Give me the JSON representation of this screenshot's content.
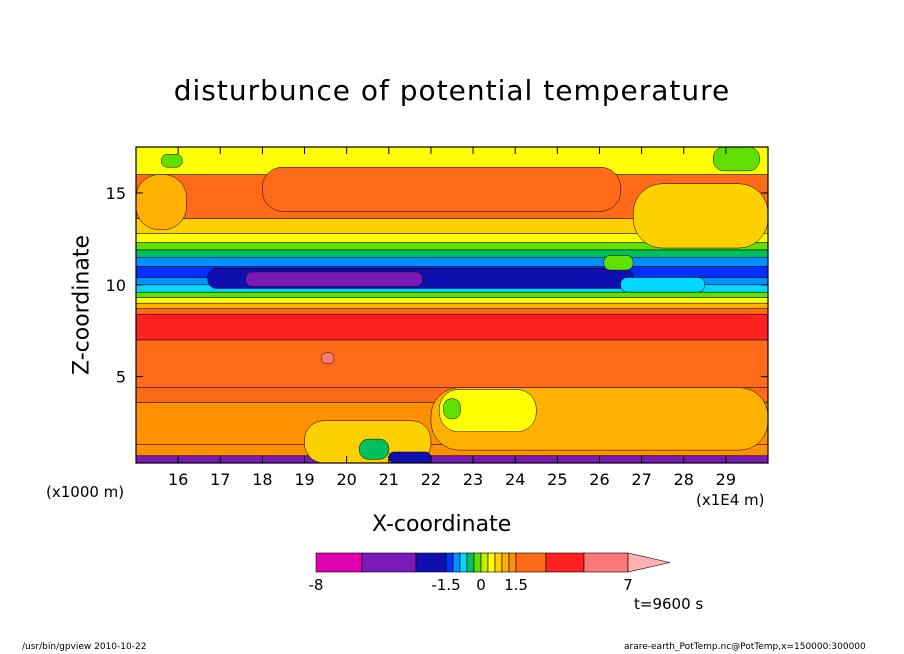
{
  "chart_data": {
    "type": "heatmap",
    "title": "disturbunce of potential temperature",
    "xlabel": "X-coordinate",
    "ylabel": "Z-coordinate",
    "x_unit_label": "(x1E4 m)",
    "y_unit_label": "(x1000 m)",
    "x_ticks": [
      "16",
      "17",
      "18",
      "19",
      "20",
      "21",
      "22",
      "23",
      "24",
      "25",
      "26",
      "27",
      "28",
      "29"
    ],
    "y_ticks": [
      "5",
      "10",
      "15"
    ],
    "xlim": [
      15.0,
      30.0
    ],
    "ylim": [
      0.3,
      17.5
    ],
    "colorbar": {
      "labels": [
        "-8",
        "-1.5",
        "0",
        "1.5",
        "7"
      ],
      "bins": [
        {
          "lo": -8,
          "hi": -6,
          "color": "#e000b0"
        },
        {
          "lo": -6,
          "hi": -4,
          "color": "#7a18b8"
        },
        {
          "lo": -4,
          "hi": -1.5,
          "color": "#1010b0"
        },
        {
          "lo": -1.5,
          "hi": -1.2,
          "color": "#0030ff"
        },
        {
          "lo": -1.2,
          "hi": -0.9,
          "color": "#0090ff"
        },
        {
          "lo": -0.9,
          "hi": -0.6,
          "color": "#00d8ff"
        },
        {
          "lo": -0.6,
          "hi": -0.3,
          "color": "#00c060"
        },
        {
          "lo": -0.3,
          "hi": 0,
          "color": "#60e000"
        },
        {
          "lo": 0,
          "hi": 0.3,
          "color": "#c0f000"
        },
        {
          "lo": 0.3,
          "hi": 0.6,
          "color": "#ffff00"
        },
        {
          "lo": 0.6,
          "hi": 0.9,
          "color": "#ffd000"
        },
        {
          "lo": 0.9,
          "hi": 1.2,
          "color": "#ffb000"
        },
        {
          "lo": 1.2,
          "hi": 1.5,
          "color": "#ff9000"
        },
        {
          "lo": 1.5,
          "hi": 3,
          "color": "#ff6a18"
        },
        {
          "lo": 3,
          "hi": 5,
          "color": "#ff2020"
        },
        {
          "lo": 5,
          "hi": 7,
          "color": "#ff7878"
        }
      ],
      "overflow_color": "#ffb0b0"
    },
    "bands": [
      {
        "z0": 0.3,
        "z1": 0.7,
        "color": "#7a18b8"
      },
      {
        "z0": 0.7,
        "z1": 1.3,
        "color": "#ff9000"
      },
      {
        "z0": 1.3,
        "z1": 3.6,
        "color": "#ff9000"
      },
      {
        "z0": 3.6,
        "z1": 4.4,
        "color": "#ff6a18"
      },
      {
        "z0": 4.4,
        "z1": 7.0,
        "color": "#ff6a18"
      },
      {
        "z0": 7.0,
        "z1": 8.4,
        "color": "#ff2020"
      },
      {
        "z0": 8.4,
        "z1": 8.7,
        "color": "#ff6a18"
      },
      {
        "z0": 8.7,
        "z1": 9.0,
        "color": "#ffb000"
      },
      {
        "z0": 9.0,
        "z1": 9.3,
        "color": "#ffff00"
      },
      {
        "z0": 9.3,
        "z1": 9.6,
        "color": "#60e000"
      },
      {
        "z0": 9.6,
        "z1": 10.0,
        "color": "#00d8ff"
      },
      {
        "z0": 10.0,
        "z1": 10.4,
        "color": "#0090ff"
      },
      {
        "z0": 10.4,
        "z1": 11.0,
        "color": "#0030ff"
      },
      {
        "z0": 11.0,
        "z1": 11.5,
        "color": "#0090ff"
      },
      {
        "z0": 11.5,
        "z1": 11.9,
        "color": "#00c060"
      },
      {
        "z0": 11.9,
        "z1": 12.3,
        "color": "#60e000"
      },
      {
        "z0": 12.3,
        "z1": 12.8,
        "color": "#ffff00"
      },
      {
        "z0": 12.8,
        "z1": 13.6,
        "color": "#ffd000"
      },
      {
        "z0": 13.6,
        "z1": 16.0,
        "color": "#ff6a18"
      },
      {
        "z0": 16.0,
        "z1": 17.5,
        "color": "#ffff00"
      }
    ],
    "features": [
      {
        "x0": 16.7,
        "x1": 26.8,
        "z0": 9.8,
        "z1": 10.9,
        "color": "#1010b0"
      },
      {
        "x0": 17.6,
        "x1": 21.8,
        "z0": 9.9,
        "z1": 10.7,
        "color": "#7a18b8"
      },
      {
        "x0": 26.5,
        "x1": 28.5,
        "z0": 9.6,
        "z1": 10.4,
        "color": "#00d8ff"
      },
      {
        "x0": 18.0,
        "x1": 26.5,
        "z0": 14.0,
        "z1": 16.4,
        "color": "#ff6a18"
      },
      {
        "x0": 15.0,
        "x1": 16.2,
        "z0": 13.0,
        "z1": 16.0,
        "color": "#ffb000"
      },
      {
        "x0": 26.8,
        "x1": 30.0,
        "z0": 12.0,
        "z1": 15.5,
        "color": "#ffd000"
      },
      {
        "x0": 26.1,
        "x1": 26.8,
        "z0": 10.8,
        "z1": 11.6,
        "color": "#60e000"
      },
      {
        "x0": 15.6,
        "x1": 16.1,
        "z0": 16.4,
        "z1": 17.1,
        "color": "#60e000"
      },
      {
        "x0": 28.7,
        "x1": 29.8,
        "z0": 16.2,
        "z1": 17.5,
        "color": "#60e000"
      },
      {
        "x0": 22.0,
        "x1": 30.0,
        "z0": 1.0,
        "z1": 4.4,
        "color": "#ffb000"
      },
      {
        "x0": 22.2,
        "x1": 24.5,
        "z0": 2.0,
        "z1": 4.3,
        "color": "#ffff00"
      },
      {
        "x0": 22.3,
        "x1": 22.7,
        "z0": 2.7,
        "z1": 3.8,
        "color": "#60e000"
      },
      {
        "x0": 19.0,
        "x1": 22.0,
        "z0": 0.3,
        "z1": 2.6,
        "color": "#ffd000"
      },
      {
        "x0": 20.3,
        "x1": 21.0,
        "z0": 0.5,
        "z1": 1.6,
        "color": "#00c060"
      },
      {
        "x0": 21.0,
        "x1": 22.0,
        "z0": 0.3,
        "z1": 0.9,
        "color": "#1010b0"
      },
      {
        "x0": 19.4,
        "x1": 19.7,
        "z0": 5.7,
        "z1": 6.3,
        "color": "#ff7878"
      }
    ]
  },
  "timestamp": "t=9600 s",
  "footer": {
    "left": "/usr/bin/gpview   2010-10-22",
    "right": "arare-earth_PotTemp.nc@PotTemp,x=150000:300000"
  }
}
